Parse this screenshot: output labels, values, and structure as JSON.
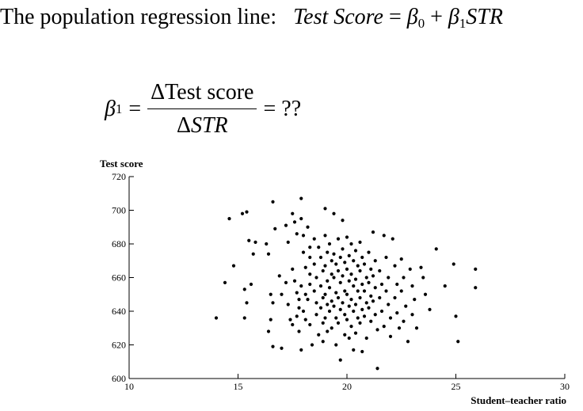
{
  "headline": {
    "prefix": "The population regression line:",
    "y_label": "Test Score",
    "equals": "=",
    "beta0": "β",
    "beta0_sub": "0",
    "plus": "+",
    "beta1": "β",
    "beta1_sub": "1",
    "x_label": "STR"
  },
  "formula": {
    "lhs": "β",
    "lhs_sub": "1",
    "equals": "=",
    "numerator": "ΔTest score",
    "denominator_delta": "Δ",
    "denominator_var": "STR",
    "result": "= ??"
  },
  "chart_data": {
    "type": "scatter",
    "ylabel": "Test score",
    "xlabel": "Student–teacher ratio",
    "xlim": [
      10,
      30
    ],
    "ylim": [
      600,
      720
    ],
    "xticks": [
      10,
      15,
      20,
      25,
      30
    ],
    "yticks": [
      600,
      620,
      640,
      660,
      680,
      700,
      720
    ],
    "grid": false,
    "marker_color": "#000000",
    "points": [
      [
        14.0,
        636
      ],
      [
        14.4,
        657
      ],
      [
        14.6,
        695
      ],
      [
        14.8,
        667
      ],
      [
        15.2,
        698
      ],
      [
        15.4,
        699
      ],
      [
        15.3,
        653
      ],
      [
        15.4,
        645
      ],
      [
        15.3,
        636
      ],
      [
        15.5,
        682
      ],
      [
        15.7,
        674
      ],
      [
        15.8,
        681
      ],
      [
        15.6,
        656
      ],
      [
        16.3,
        680
      ],
      [
        16.4,
        674
      ],
      [
        16.5,
        650
      ],
      [
        16.6,
        645
      ],
      [
        16.5,
        635
      ],
      [
        16.4,
        628
      ],
      [
        16.6,
        619
      ],
      [
        16.6,
        705
      ],
      [
        16.7,
        689
      ],
      [
        16.9,
        661
      ],
      [
        17.0,
        650
      ],
      [
        17.0,
        618
      ],
      [
        17.2,
        691
      ],
      [
        17.3,
        681
      ],
      [
        17.2,
        657
      ],
      [
        17.3,
        644
      ],
      [
        17.4,
        635
      ],
      [
        17.5,
        632
      ],
      [
        17.5,
        698
      ],
      [
        17.6,
        693
      ],
      [
        17.7,
        686
      ],
      [
        17.5,
        665
      ],
      [
        17.6,
        658
      ],
      [
        17.7,
        651
      ],
      [
        17.8,
        647
      ],
      [
        17.8,
        642
      ],
      [
        17.7,
        637
      ],
      [
        17.8,
        628
      ],
      [
        17.9,
        707
      ],
      [
        17.9,
        695
      ],
      [
        17.9,
        655
      ],
      [
        17.9,
        617
      ],
      [
        18.0,
        685
      ],
      [
        18.0,
        675
      ],
      [
        18.1,
        666
      ],
      [
        18.1,
        650
      ],
      [
        18.0,
        640
      ],
      [
        18.1,
        635
      ],
      [
        18.2,
        690
      ],
      [
        18.3,
        678
      ],
      [
        18.3,
        672
      ],
      [
        18.3,
        662
      ],
      [
        18.3,
        656
      ],
      [
        18.2,
        647
      ],
      [
        18.3,
        632
      ],
      [
        18.4,
        620
      ],
      [
        18.5,
        683
      ],
      [
        18.5,
        668
      ],
      [
        18.6,
        660
      ],
      [
        18.5,
        652
      ],
      [
        18.6,
        645
      ],
      [
        18.6,
        638
      ],
      [
        18.7,
        626
      ],
      [
        18.7,
        678
      ],
      [
        18.8,
        672
      ],
      [
        18.9,
        664
      ],
      [
        18.8,
        655
      ],
      [
        18.9,
        648
      ],
      [
        18.8,
        642
      ],
      [
        18.9,
        633
      ],
      [
        18.9,
        622
      ],
      [
        19.0,
        701
      ],
      [
        19.0,
        685
      ],
      [
        19.1,
        675
      ],
      [
        19.0,
        667
      ],
      [
        19.1,
        658
      ],
      [
        19.0,
        650
      ],
      [
        19.1,
        644
      ],
      [
        19.0,
        636
      ],
      [
        19.1,
        628
      ],
      [
        19.2,
        680
      ],
      [
        19.3,
        670
      ],
      [
        19.3,
        662
      ],
      [
        19.2,
        654
      ],
      [
        19.3,
        646
      ],
      [
        19.2,
        640
      ],
      [
        19.3,
        630
      ],
      [
        19.4,
        698
      ],
      [
        19.4,
        674
      ],
      [
        19.5,
        668
      ],
      [
        19.4,
        660
      ],
      [
        19.5,
        651
      ],
      [
        19.4,
        643
      ],
      [
        19.5,
        636
      ],
      [
        19.5,
        620
      ],
      [
        19.6,
        683
      ],
      [
        19.7,
        672
      ],
      [
        19.6,
        664
      ],
      [
        19.7,
        657
      ],
      [
        19.6,
        648
      ],
      [
        19.7,
        641
      ],
      [
        19.6,
        633
      ],
      [
        19.7,
        611
      ],
      [
        19.8,
        694
      ],
      [
        19.8,
        677
      ],
      [
        19.9,
        669
      ],
      [
        19.8,
        661
      ],
      [
        19.9,
        652
      ],
      [
        19.8,
        645
      ],
      [
        19.9,
        638
      ],
      [
        19.9,
        626
      ],
      [
        20.0,
        684
      ],
      [
        20.1,
        673
      ],
      [
        20.0,
        665
      ],
      [
        20.1,
        658
      ],
      [
        20.0,
        650
      ],
      [
        20.1,
        643
      ],
      [
        20.0,
        635
      ],
      [
        20.1,
        624
      ],
      [
        20.2,
        680
      ],
      [
        20.3,
        670
      ],
      [
        20.2,
        662
      ],
      [
        20.3,
        655
      ],
      [
        20.2,
        647
      ],
      [
        20.3,
        640
      ],
      [
        20.2,
        631
      ],
      [
        20.3,
        617
      ],
      [
        20.4,
        676
      ],
      [
        20.5,
        667
      ],
      [
        20.4,
        659
      ],
      [
        20.5,
        652
      ],
      [
        20.4,
        644
      ],
      [
        20.5,
        636
      ],
      [
        20.4,
        627
      ],
      [
        20.6,
        681
      ],
      [
        20.7,
        672
      ],
      [
        20.6,
        664
      ],
      [
        20.7,
        656
      ],
      [
        20.6,
        648
      ],
      [
        20.7,
        641
      ],
      [
        20.6,
        633
      ],
      [
        20.7,
        616
      ],
      [
        20.8,
        668
      ],
      [
        20.9,
        660
      ],
      [
        20.8,
        652
      ],
      [
        20.9,
        645
      ],
      [
        20.8,
        637
      ],
      [
        20.9,
        624
      ],
      [
        21.0,
        675
      ],
      [
        21.1,
        665
      ],
      [
        21.0,
        657
      ],
      [
        21.1,
        649
      ],
      [
        21.0,
        642
      ],
      [
        21.1,
        634
      ],
      [
        21.2,
        687
      ],
      [
        21.3,
        670
      ],
      [
        21.2,
        661
      ],
      [
        21.3,
        654
      ],
      [
        21.2,
        646
      ],
      [
        21.3,
        638
      ],
      [
        21.4,
        629
      ],
      [
        21.4,
        606
      ],
      [
        21.5,
        664
      ],
      [
        21.6,
        656
      ],
      [
        21.5,
        648
      ],
      [
        21.6,
        640
      ],
      [
        21.7,
        631
      ],
      [
        21.7,
        685
      ],
      [
        21.8,
        672
      ],
      [
        21.9,
        660
      ],
      [
        21.8,
        652
      ],
      [
        21.9,
        644
      ],
      [
        22.0,
        636
      ],
      [
        22.0,
        625
      ],
      [
        22.1,
        683
      ],
      [
        22.2,
        667
      ],
      [
        22.3,
        656
      ],
      [
        22.2,
        648
      ],
      [
        22.3,
        639
      ],
      [
        22.4,
        630
      ],
      [
        22.5,
        671
      ],
      [
        22.6,
        660
      ],
      [
        22.5,
        652
      ],
      [
        22.7,
        643
      ],
      [
        22.6,
        634
      ],
      [
        22.8,
        622
      ],
      [
        22.9,
        665
      ],
      [
        23.0,
        655
      ],
      [
        23.1,
        647
      ],
      [
        23.0,
        638
      ],
      [
        23.2,
        630
      ],
      [
        23.4,
        666
      ],
      [
        23.5,
        660
      ],
      [
        23.6,
        650
      ],
      [
        23.8,
        641
      ],
      [
        24.1,
        677
      ],
      [
        24.5,
        655
      ],
      [
        24.9,
        668
      ],
      [
        25.0,
        637
      ],
      [
        25.1,
        622
      ],
      [
        25.9,
        665
      ],
      [
        25.9,
        654
      ]
    ]
  }
}
